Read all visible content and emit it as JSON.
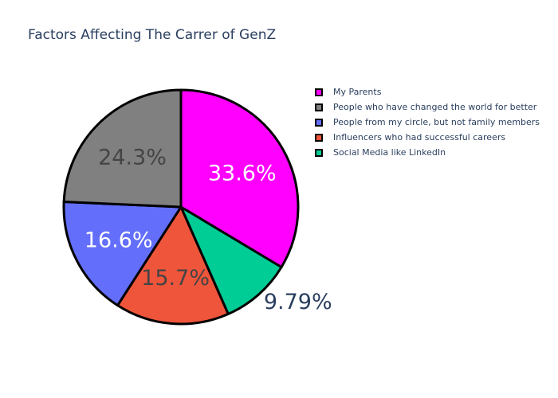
{
  "chart_data": {
    "type": "pie",
    "title": "Factors Affecting The Carrer of GenZ",
    "categories": [
      "My Parents",
      "People who have changed the world for better",
      "People from my circle, but not family members",
      "Influencers who had successful careers",
      "Social Media like LinkedIn"
    ],
    "values": [
      33.6,
      24.3,
      16.6,
      15.7,
      9.79
    ],
    "value_labels": [
      "33.6%",
      "24.3%",
      "16.6%",
      "15.7%",
      "9.79%"
    ],
    "slice_order": [
      "My Parents",
      "Social Media like LinkedIn",
      "Influencers who had successful careers",
      "People from my circle, but not family members",
      "People who have changed the world for better"
    ],
    "colors": {
      "My Parents": "#ff00ff",
      "People who have changed the world for better": "#808080",
      "People from my circle, but not family members": "#636efa",
      "Influencers who had successful careers": "#ef553b",
      "Social Media like LinkedIn": "#00cc96"
    },
    "label_colors": {
      "My Parents": "#ffffff",
      "People who have changed the world for better": "#444444",
      "People from my circle, but not family members": "#ffffff",
      "Influencers who had successful careers": "#444444",
      "Social Media like LinkedIn": "#2a3f5f"
    },
    "legend_position": "top-right"
  }
}
